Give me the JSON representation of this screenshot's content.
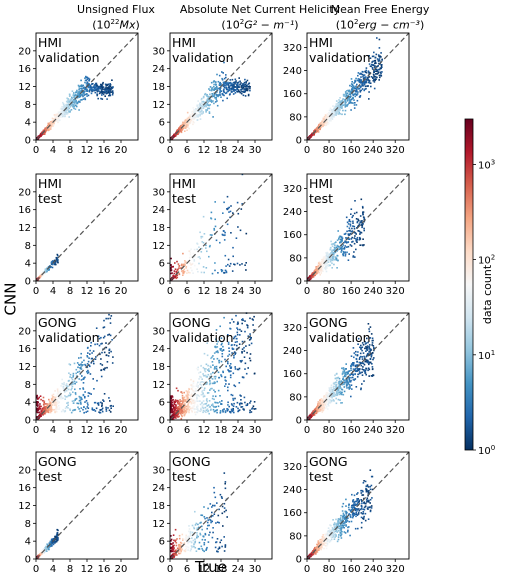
{
  "chart_data": {
    "type": "heatmap",
    "shared_xlabel": "True",
    "shared_ylabel": "CNN",
    "columns": [
      {
        "title_line1": "Unsigned Flux",
        "title_line2_base": "10",
        "title_line2_exp": "22",
        "title_line2_unit": "Mx",
        "title_line2": "(10^22 Mx)",
        "lim": [
          0,
          24
        ],
        "ticks": [
          0,
          4,
          8,
          12,
          16,
          20
        ]
      },
      {
        "title_line1": "Absolute Net Current Helicity",
        "title_line2_base": "10",
        "title_line2_exp": "2",
        "title_line2_unit": "G² − m⁻¹",
        "title_line2": "(10^2 G^2 − m^-1)",
        "lim": [
          0,
          36
        ],
        "ticks": [
          0,
          6,
          12,
          18,
          24,
          30
        ]
      },
      {
        "title_line1": "Mean Free Energy",
        "title_line2_base": "10",
        "title_line2_exp": "2",
        "title_line2_unit": "erg − cm⁻³",
        "title_line2": "(10^2 erg − cm^-3)",
        "lim": [
          0,
          370
        ],
        "ticks": [
          0,
          80,
          160,
          240,
          320
        ]
      }
    ],
    "rows": [
      {
        "label_line1": "HMI",
        "label_line2": "validation"
      },
      {
        "label_line1": "HMI",
        "label_line2": "test"
      },
      {
        "label_line1": "GONG",
        "label_line2": "validation"
      },
      {
        "label_line1": "GONG",
        "label_line2": "test"
      }
    ],
    "y_ticks": {
      "col0": [
        0,
        4,
        8,
        12,
        16,
        20
      ],
      "col1": [
        0,
        6,
        12,
        18,
        24,
        30
      ],
      "col2": [
        0,
        80,
        160,
        240,
        320
      ]
    },
    "panels": [
      [
        {
          "x_max": 18,
          "spread": 0.12,
          "density": 1.0,
          "tail": "flat"
        },
        {
          "x_max": 28,
          "spread": 0.15,
          "density": 1.0,
          "tail": "flat"
        },
        {
          "x_max": 270,
          "spread": 0.12,
          "density": 1.0,
          "tail": "none"
        }
      ],
      [
        {
          "x_max": 5,
          "spread": 0.1,
          "density": 0.25,
          "tail": "none"
        },
        {
          "x_max": 27,
          "spread": 0.3,
          "density": 0.25,
          "tail": "low"
        },
        {
          "x_max": 205,
          "spread": 0.22,
          "density": 0.7,
          "tail": "none"
        }
      ],
      [
        {
          "x_max": 18,
          "spread": 0.22,
          "density": 0.7,
          "tail": "low"
        },
        {
          "x_max": 30,
          "spread": 0.35,
          "density": 1.0,
          "tail": "low"
        },
        {
          "x_max": 240,
          "spread": 0.2,
          "density": 0.95,
          "tail": "none"
        }
      ],
      [
        {
          "x_max": 5,
          "spread": 0.12,
          "density": 0.3,
          "tail": "none"
        },
        {
          "x_max": 20,
          "spread": 0.3,
          "density": 0.35,
          "tail": "low"
        },
        {
          "x_max": 235,
          "spread": 0.18,
          "density": 0.85,
          "tail": "none"
        }
      ]
    ],
    "colorbar": {
      "label": "data count",
      "scale": "log",
      "range": [
        1,
        3000
      ],
      "ticks_base": "10",
      "ticks_exp": [
        "0",
        "1",
        "2",
        "3"
      ],
      "colormap": [
        "#053061",
        "#2166ac",
        "#4393c3",
        "#92c5de",
        "#d1e5f0",
        "#f7f7f7",
        "#fddbc7",
        "#f4a582",
        "#d6604d",
        "#b2182b",
        "#67001f"
      ]
    },
    "diagonal_line_color": "#555555",
    "grid": false
  }
}
